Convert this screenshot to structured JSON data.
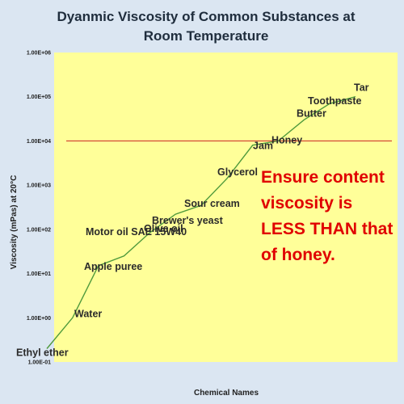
{
  "chart_data": {
    "type": "line",
    "title_lines": [
      "Dyanmic Viscosity of Common Substances at",
      "Room Temperature"
    ],
    "xlabel": "Chemical Names",
    "ylabel": "Viscosity (mPas) at 20°C",
    "yscale": "log",
    "ylim": [
      0.1,
      1000000
    ],
    "y_tick_labels": [
      "1.00E-01",
      "1.00E+00",
      "1.00E+01",
      "1.00E+02",
      "1.00E+03",
      "1.00E+04",
      "1.00E+05",
      "1.00E+06"
    ],
    "grid": false,
    "line_color": "#4f9a3c",
    "plot_background": "#ffff99",
    "points": [
      {
        "label": "Ethyl ether",
        "y": 0.2
      },
      {
        "label": "Water",
        "y": 1
      },
      {
        "label": "Apple puree",
        "y": 15
      },
      {
        "label": "Motor oil SAE 15W40",
        "y": 25
      },
      {
        "label": "Olive oil",
        "y": 84
      },
      {
        "label": "Brewer's yeast",
        "y": 220
      },
      {
        "label": "Sour cream",
        "y": 350
      },
      {
        "label": "Glycerol",
        "y": 1400
      },
      {
        "label": "Jam",
        "y": 8000
      },
      {
        "label": "Honey",
        "y": 10000
      },
      {
        "label": "Butter",
        "y": 30000
      },
      {
        "label": "Toothpaste",
        "y": 70000
      },
      {
        "label": "Tar",
        "y": 100000
      }
    ],
    "reference_line": {
      "y": 10000,
      "color": "#cc2222"
    },
    "annotation": {
      "lines": [
        "Ensure content",
        "viscosity is",
        "LESS THAN that",
        "of honey."
      ],
      "color": "#e00000"
    }
  }
}
